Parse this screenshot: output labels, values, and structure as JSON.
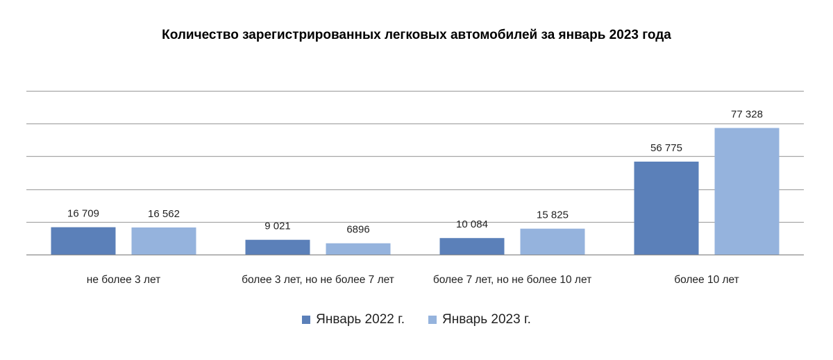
{
  "chart_data": {
    "type": "bar",
    "title": "Количество зарегистрированных легковых автомобилей за январь 2023 года",
    "xlabel": "",
    "ylabel": "",
    "categories": [
      "не более 3 лет",
      "более 3 лет, но не более 7 лет",
      "более 7 лет, но не более 10 лет",
      "более 10 лет"
    ],
    "series": [
      {
        "name": "Январь 2022 г.",
        "color": "#5b80b9",
        "values": [
          16709,
          9021,
          10084,
          56775
        ],
        "labels": [
          "16 709",
          "9 021",
          "10 084",
          "56 775"
        ]
      },
      {
        "name": "Январь 2023 г.",
        "color": "#95b3dd",
        "values": [
          16562,
          6896,
          15825,
          77328
        ],
        "labels": [
          "16 562",
          "6896",
          "15 825",
          "77 328"
        ]
      }
    ],
    "ylim": [
      0,
      100000
    ],
    "grid": true,
    "legend_position": "bottom"
  }
}
